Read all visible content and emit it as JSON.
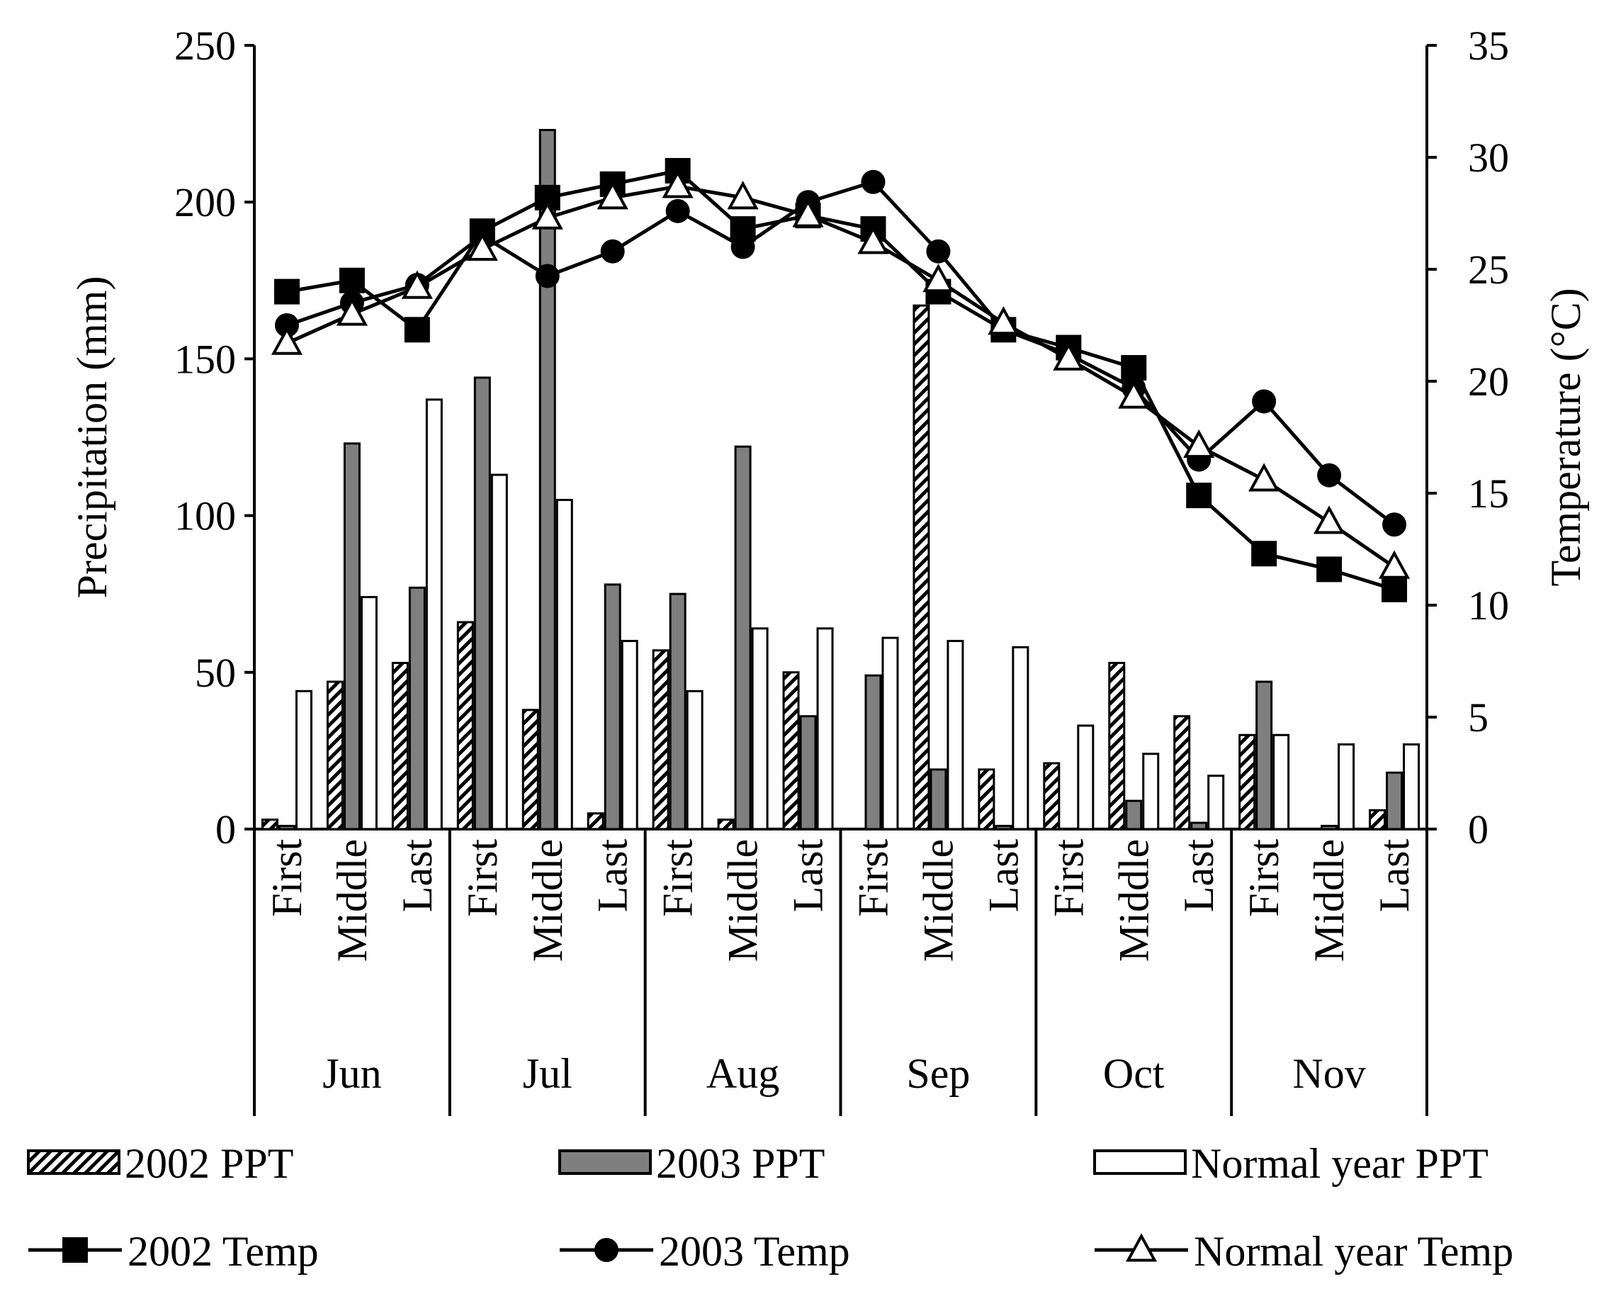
{
  "chart_data": {
    "type": "bar+line",
    "months": [
      "Jun",
      "Jul",
      "Aug",
      "Sep",
      "Oct",
      "Nov"
    ],
    "periods": [
      "First",
      "Middle",
      "Last"
    ],
    "left_axis": {
      "label": "Precipitation (mm)",
      "range": [
        0,
        250
      ],
      "ticks": [
        "0",
        "50",
        "100",
        "150",
        "200",
        "250"
      ]
    },
    "right_axis": {
      "label": "Temperature (°C)",
      "range": [
        0,
        35
      ],
      "ticks": [
        "0",
        "5",
        "10",
        "15",
        "20",
        "25",
        "30",
        "35"
      ]
    },
    "bar_series": [
      {
        "name": "2002 PPT",
        "legend": "2002 PPT",
        "style": "hatched",
        "values": [
          3,
          47,
          53,
          66,
          38,
          5,
          57,
          3,
          50,
          0,
          167,
          19,
          21,
          53,
          36,
          30,
          0,
          6
        ]
      },
      {
        "name": "2003 PPT",
        "legend": "2003 PPT",
        "style": "gray",
        "values": [
          1,
          123,
          77,
          144,
          223,
          78,
          75,
          122,
          36,
          49,
          19,
          1,
          0,
          9,
          2,
          47,
          1,
          18
        ]
      },
      {
        "name": "Normal year PPT",
        "legend": "Normal year PPT",
        "style": "white",
        "values": [
          44,
          74,
          137,
          113,
          105,
          60,
          44,
          64,
          64,
          61,
          60,
          58,
          33,
          24,
          17,
          30,
          27,
          27
        ]
      }
    ],
    "line_series": [
      {
        "name": "2002 Temp",
        "legend": "2002 Temp",
        "marker": "square",
        "values": [
          24.0,
          24.5,
          22.3,
          26.7,
          28.2,
          28.8,
          29.4,
          26.8,
          27.4,
          26.8,
          24.0,
          22.3,
          21.5,
          20.6,
          14.9,
          12.3,
          11.6,
          10.7
        ]
      },
      {
        "name": "2003 Temp",
        "legend": "2003 Temp",
        "marker": "circle",
        "values": [
          22.5,
          23.5,
          24.3,
          26.5,
          24.7,
          25.8,
          27.6,
          26.0,
          28.0,
          28.9,
          25.8,
          22.3,
          21.2,
          19.7,
          16.5,
          19.1,
          15.8,
          13.6
        ]
      },
      {
        "name": "Normal year Temp",
        "legend": "Normal year Temp",
        "marker": "triangle",
        "values": [
          21.7,
          23.0,
          24.2,
          25.9,
          27.3,
          28.2,
          28.7,
          28.2,
          27.4,
          26.2,
          24.5,
          22.6,
          21.0,
          19.3,
          17.1,
          15.6,
          13.7,
          11.7
        ]
      }
    ],
    "legend_position": "bottom",
    "grid": false
  }
}
